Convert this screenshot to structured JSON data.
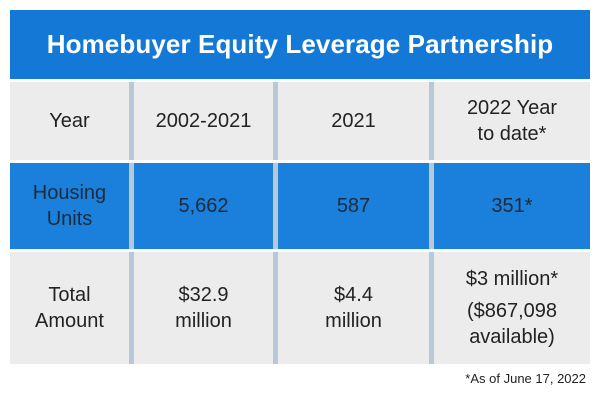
{
  "title": "Homebuyer Equity Leverage Partnership",
  "header": {
    "label": "Year",
    "col1": "2002-2021",
    "col2": "2021",
    "col3": "2022 Year\nto date*"
  },
  "housing_units": {
    "label": "Housing\nUnits",
    "col1": "5,662",
    "col2": "587",
    "col3": "351*"
  },
  "total_amount": {
    "label": "Total\nAmount",
    "col1": "$32.9\nmillion",
    "col2": "$4.4\nmillion",
    "col3_main": "$3 million*",
    "col3_sub": "($867,098\navailable)"
  },
  "footnote": "*As of June 17, 2022",
  "colors": {
    "title_background": "#1479d6",
    "highlight_row": "#1a80dc",
    "row_background": "#ececec",
    "divider": "#b7c9d9"
  }
}
